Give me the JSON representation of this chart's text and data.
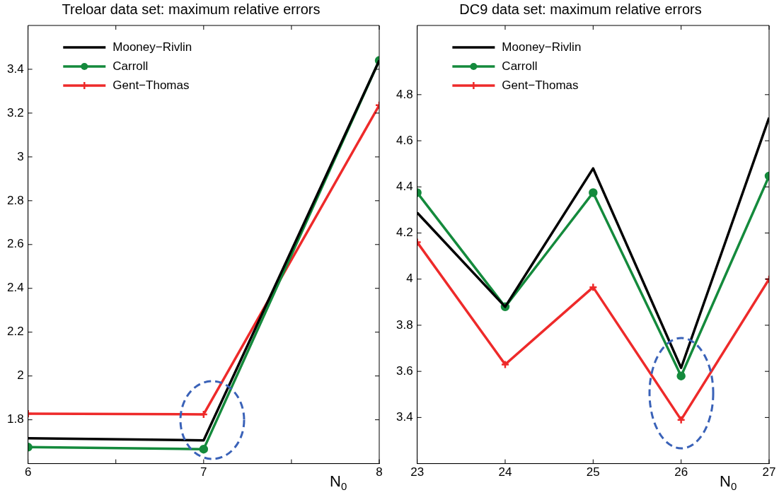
{
  "chart_data": [
    {
      "type": "line",
      "title": "Treloar data set: maximum relative errors",
      "xlabel": "N$_{0}$",
      "legend": "top left",
      "grid": false,
      "xlim": [
        6,
        8
      ],
      "xticks": [
        6,
        {
          "value": 6.5,
          "label": null
        },
        7,
        {
          "value": 7.5,
          "label": null
        },
        8
      ],
      "ylim": [
        1.6,
        3.6
      ],
      "yticks": [
        1.8,
        2,
        2.2,
        2.4,
        2.6,
        2.8,
        3,
        3.2,
        3.4
      ],
      "x": [
        6,
        7,
        8
      ],
      "series": [
        {
          "name": "Mooney−Rivlin",
          "color": "#000000",
          "marker": "none",
          "values": [
            1.716,
            1.706,
            3.44
          ]
        },
        {
          "name": "Carroll",
          "color": "#148a3c",
          "marker": "circle",
          "values": [
            1.675,
            1.666,
            3.44
          ]
        },
        {
          "name": "Gent−Thomas",
          "color": "#ee2a2a",
          "marker": "cross",
          "values": [
            1.828,
            1.825,
            3.236
          ]
        }
      ]
    },
    {
      "type": "line",
      "title": "DC9 data set: maximum relative errors",
      "xlabel": "N$_{0}$",
      "legend": "top left",
      "grid": false,
      "xlim": [
        23,
        27
      ],
      "xticks": [
        23,
        24,
        25,
        26,
        27
      ],
      "ylim": [
        3.2,
        5.1
      ],
      "yticks": [
        3.4,
        3.6,
        3.8,
        4,
        4.2,
        4.4,
        4.6,
        4.8
      ],
      "x": [
        23,
        24,
        25,
        26,
        27
      ],
      "series": [
        {
          "name": "Mooney−Rivlin",
          "color": "#000000",
          "marker": "none",
          "values": [
            4.288,
            3.88,
            4.48,
            3.615,
            4.7
          ]
        },
        {
          "name": "Carroll",
          "color": "#148a3c",
          "marker": "circle",
          "values": [
            4.375,
            3.88,
            4.375,
            3.58,
            4.447
          ]
        },
        {
          "name": "Gent−Thomas",
          "color": "#ee2a2a",
          "marker": "cross",
          "values": [
            4.16,
            3.63,
            3.965,
            3.39,
            4.0
          ]
        }
      ]
    }
  ]
}
